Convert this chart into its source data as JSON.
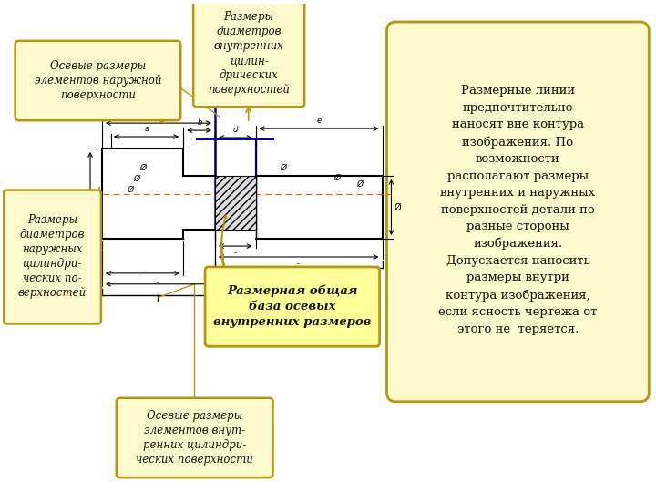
{
  "bg_color": "#ffffff",
  "left_panel_bg": "#ffffff",
  "right_panel_bg": "#fffacd",
  "right_panel_border": "#b8960c",
  "label_box_bg": "#fffacd",
  "label_box_border": "#b8960c",
  "label_bold_box_bg": "#ffff99",
  "label_bold_box_border": "#b8960c",
  "drawing_line_color": "#000000",
  "blue_line_color": "#0000cc",
  "arrow_color": "#b8960c",
  "hatch_color": "#666666",
  "right_text": "Размерные линии\nпредпочтительно\nнаносят вне контура\nизображения. По\nвозможности\nрасполагают размеры\nвнутренних и наружных\nповерхностей детали по\nразные стороны\nизображения.\nДопускается наносить\nразмеры внутри\nконтура изображения,\nесли ясность чертежа от\nэтого не  теряется.",
  "label1_text": "Осевые размеры\nэлементов наружной\nповерхности",
  "label2_text": "Размеры\nдиаметров\nвнутренних\nцилин-\nдрических\nповерхностей",
  "label3_text": "Размеры\nдиаметров\nнаружных\nцилиндри-\nческих по-\nверхностей",
  "label4_text": "Размерная общая\nбаза осевых\nвнутренних размеров",
  "label5_text": "Осевые размеры\nэлементов внут-\nренних цилиндри-\nческих поверхности"
}
